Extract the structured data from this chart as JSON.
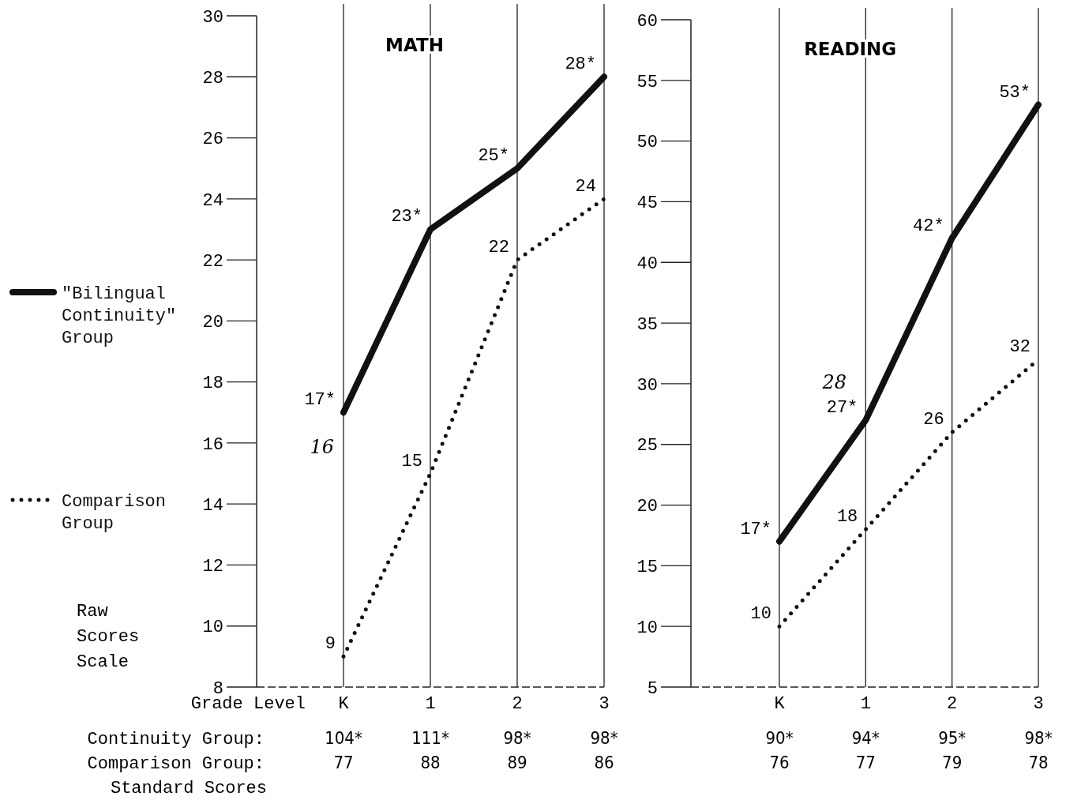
{
  "chart_data": [
    {
      "type": "line",
      "title": "MATH",
      "xlabel": "Grade Level",
      "ylabel": "Raw Scores Scale",
      "categories": [
        "K",
        "1",
        "2",
        "3"
      ],
      "ylim": [
        8,
        30
      ],
      "yticks": [
        8,
        10,
        12,
        14,
        16,
        18,
        20,
        22,
        24,
        26,
        28,
        30
      ],
      "grid": "x",
      "legend": "left",
      "marker": "none",
      "series": [
        {
          "name": "\"Bilingual Continuity\" Group",
          "color": "#111111",
          "line_style": "solid",
          "values": [
            17,
            23,
            25,
            28
          ],
          "value_labels": [
            "17*",
            "23*",
            "25*",
            "28*"
          ]
        },
        {
          "name": "Comparison Group",
          "color": "#111111",
          "line_style": "dotted",
          "values": [
            9,
            15,
            22,
            24
          ],
          "value_labels": [
            "9",
            "15",
            "22",
            "24"
          ]
        }
      ],
      "annotations": [
        "Continuity Group:",
        "Comparison Group:",
        "Standard Scores",
        "104*",
        "111*",
        "98*",
        "98*",
        "77",
        "88",
        "89",
        "86",
        "16"
      ]
    },
    {
      "type": "line",
      "title": "READING",
      "categories": [
        "K",
        "1",
        "2",
        "3"
      ],
      "ylim": [
        5,
        60
      ],
      "yticks": [
        5,
        10,
        15,
        20,
        25,
        30,
        35,
        40,
        45,
        50,
        55,
        60
      ],
      "grid": "x",
      "marker": "none",
      "series": [
        {
          "color": "#111111",
          "line_style": "solid",
          "values": [
            17,
            27,
            42,
            53
          ],
          "value_labels": [
            "17*",
            "27*",
            "42*",
            "53*"
          ]
        },
        {
          "color": "#111111",
          "line_style": "dotted",
          "values": [
            10,
            18,
            26,
            32
          ],
          "value_labels": [
            "10",
            "18",
            "26",
            "32"
          ]
        }
      ],
      "annotations": [
        "90*",
        "94*",
        "95*",
        "98*",
        "76",
        "77",
        "79",
        "78",
        "28"
      ]
    }
  ]
}
